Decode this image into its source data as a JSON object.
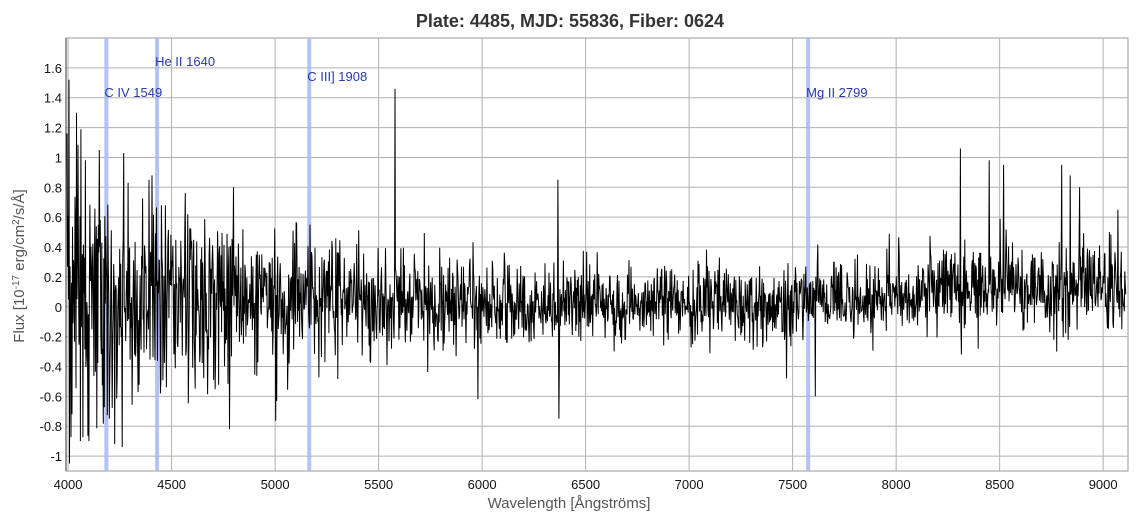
{
  "chart_data": {
    "type": "line",
    "title": "Plate: 4485, MJD: 55836, Fiber: 0624",
    "xlabel": "Wavelength [Ångströms]",
    "ylabel_parts": [
      "Flux [10",
      "-17",
      " erg/cm",
      "2",
      "/s/Å]"
    ],
    "xlim": [
      3990,
      9120
    ],
    "ylim": [
      -1.1,
      1.8
    ],
    "x_ticks": [
      4000,
      4500,
      5000,
      5500,
      6000,
      6500,
      7000,
      7500,
      8000,
      8500,
      9000
    ],
    "y_ticks": [
      -1,
      -0.8,
      -0.6,
      -0.4,
      -0.2,
      0,
      0.2,
      0.4,
      0.6,
      0.8,
      1,
      1.2,
      1.4,
      1.6
    ],
    "grid": true,
    "emission_lines": [
      {
        "label": "C IV 1549",
        "x": 4185,
        "label_y": 1.43
      },
      {
        "label": "He II 1640",
        "x": 4430,
        "label_y": 1.64
      },
      {
        "label": "C III] 1908",
        "x": 5165,
        "label_y": 1.54
      },
      {
        "label": "Mg II 2799",
        "x": 7575,
        "label_y": 1.43
      }
    ],
    "series": [
      {
        "color": "#000000",
        "noise_profile": [
          [
            4000,
            0.06,
            0.45
          ],
          [
            4300,
            0.05,
            0.35
          ],
          [
            4800,
            0.04,
            0.26
          ],
          [
            5500,
            0.04,
            0.18
          ],
          [
            6500,
            0.02,
            0.13
          ],
          [
            7500,
            0.02,
            0.12
          ],
          [
            8300,
            0.12,
            0.14
          ],
          [
            9100,
            0.14,
            0.16
          ]
        ],
        "peaks": [
          [
            4005,
            1.52
          ],
          [
            4020,
            -0.72
          ],
          [
            4040,
            1.3
          ],
          [
            4060,
            -0.9
          ],
          [
            4085,
            0.98
          ],
          [
            4100,
            -0.9
          ],
          [
            4150,
            1.05
          ],
          [
            4200,
            -0.75
          ],
          [
            4225,
            -0.92
          ],
          [
            4390,
            0.85
          ],
          [
            4405,
            0.88
          ],
          [
            4445,
            -0.58
          ],
          [
            4470,
            0.68
          ],
          [
            4780,
            -0.82
          ],
          [
            4800,
            0.8
          ],
          [
            5580,
            1.46
          ],
          [
            5980,
            -0.62
          ],
          [
            6365,
            0.85
          ],
          [
            6370,
            -0.75
          ],
          [
            7470,
            -0.48
          ],
          [
            7610,
            -0.6
          ],
          [
            8310,
            1.06
          ],
          [
            8315,
            -0.32
          ],
          [
            8450,
            0.98
          ],
          [
            8520,
            0.95
          ],
          [
            8775,
            -0.3
          ],
          [
            8800,
            0.95
          ],
          [
            8840,
            0.88
          ],
          [
            8885,
            0.8
          ],
          [
            9060,
            0.3
          ],
          [
            9090,
            -0.15
          ]
        ]
      }
    ]
  }
}
